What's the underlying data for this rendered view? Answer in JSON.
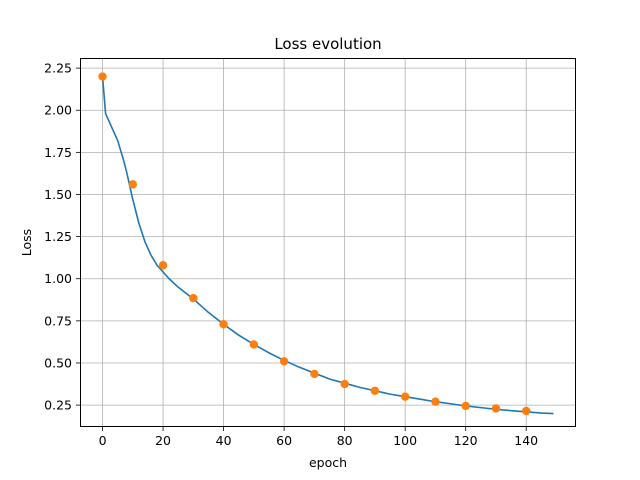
{
  "chart_data": {
    "type": "line",
    "title": "Loss evolution",
    "xlabel": "epoch",
    "ylabel": "Loss",
    "xlim": [
      -7.45,
      156.45
    ],
    "ylim": [
      0.12,
      2.31
    ],
    "grid": true,
    "x_ticks": [
      0,
      20,
      40,
      60,
      80,
      100,
      120,
      140
    ],
    "x_tick_labels": [
      "0",
      "20",
      "40",
      "60",
      "80",
      "100",
      "120",
      "140"
    ],
    "y_ticks": [
      0.25,
      0.5,
      0.75,
      1.0,
      1.25,
      1.5,
      1.75,
      2.0,
      2.25
    ],
    "y_tick_labels": [
      "0.25",
      "0.50",
      "0.75",
      "1.00",
      "1.25",
      "1.50",
      "1.75",
      "2.00",
      "2.25"
    ],
    "series": [
      {
        "kind": "line",
        "color": "#1f77b4",
        "x": [
          0,
          1,
          2,
          3,
          4,
          5,
          6,
          7,
          8,
          9,
          10,
          12,
          14,
          16,
          18,
          20,
          22,
          25,
          30,
          35,
          40,
          45,
          50,
          55,
          60,
          65,
          70,
          75,
          80,
          85,
          90,
          95,
          100,
          105,
          110,
          115,
          120,
          125,
          130,
          135,
          140,
          145,
          149
        ],
        "y": [
          2.2,
          1.98,
          1.94,
          1.9,
          1.86,
          1.82,
          1.76,
          1.7,
          1.63,
          1.55,
          1.47,
          1.33,
          1.22,
          1.14,
          1.08,
          1.04,
          1.0,
          0.95,
          0.88,
          0.8,
          0.73,
          0.665,
          0.61,
          0.56,
          0.515,
          0.475,
          0.44,
          0.405,
          0.38,
          0.355,
          0.335,
          0.315,
          0.3,
          0.285,
          0.27,
          0.258,
          0.245,
          0.235,
          0.225,
          0.217,
          0.21,
          0.203,
          0.2
        ]
      },
      {
        "kind": "markers",
        "color": "#ff7f0e",
        "x": [
          0,
          10,
          20,
          30,
          40,
          50,
          60,
          70,
          80,
          90,
          100,
          110,
          120,
          130,
          140
        ],
        "y": [
          2.2,
          1.56,
          1.08,
          0.885,
          0.73,
          0.61,
          0.51,
          0.435,
          0.375,
          0.335,
          0.3,
          0.27,
          0.245,
          0.23,
          0.215
        ]
      }
    ]
  }
}
